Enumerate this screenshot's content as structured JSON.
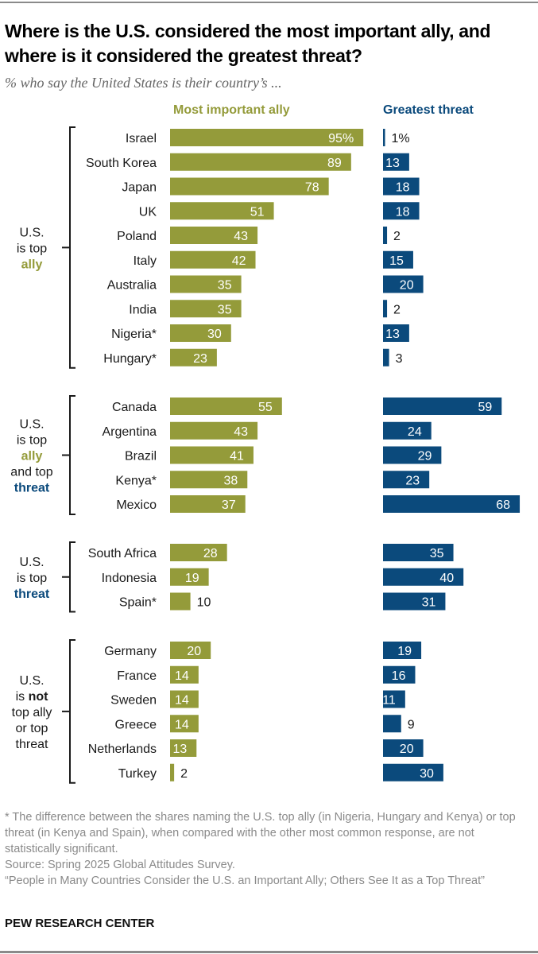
{
  "header": {
    "title": "Where is the U.S. considered the most important ally, and where is it considered the greatest threat?",
    "subtitle": "% who say the United States is their country’s ..."
  },
  "colors": {
    "ally": "#949b3a",
    "threat": "#0b4a7c"
  },
  "chart_data": {
    "type": "bar",
    "title": "Where is the U.S. considered the most important ally, and where is it considered the greatest threat?",
    "subtitle": "% who say the United States is their country’s ...",
    "series_labels": [
      "Most important ally",
      "Greatest threat"
    ],
    "unit": "%",
    "groups": [
      {
        "label_lines": [
          {
            "parts": [
              {
                "text": "U.S.",
                "style": "normal"
              }
            ]
          },
          {
            "parts": [
              {
                "text": "is top",
                "style": "normal"
              }
            ]
          },
          {
            "parts": [
              {
                "text": "ally",
                "style": "ally"
              }
            ]
          }
        ],
        "rows": [
          {
            "country": "Israel",
            "ally": 95,
            "threat": 1,
            "ally_label": "95%",
            "threat_label": "1%"
          },
          {
            "country": "South Korea",
            "ally": 89,
            "threat": 13
          },
          {
            "country": "Japan",
            "ally": 78,
            "threat": 18
          },
          {
            "country": "UK",
            "ally": 51,
            "threat": 18
          },
          {
            "country": "Poland",
            "ally": 43,
            "threat": 2
          },
          {
            "country": "Italy",
            "ally": 42,
            "threat": 15
          },
          {
            "country": "Australia",
            "ally": 35,
            "threat": 20
          },
          {
            "country": "India",
            "ally": 35,
            "threat": 2
          },
          {
            "country": "Nigeria*",
            "ally": 30,
            "threat": 13
          },
          {
            "country": "Hungary*",
            "ally": 23,
            "threat": 3
          }
        ]
      },
      {
        "label_lines": [
          {
            "parts": [
              {
                "text": "U.S.",
                "style": "normal"
              }
            ]
          },
          {
            "parts": [
              {
                "text": "is top",
                "style": "normal"
              }
            ]
          },
          {
            "parts": [
              {
                "text": "ally",
                "style": "ally"
              }
            ]
          },
          {
            "parts": [
              {
                "text": "and top",
                "style": "normal"
              }
            ]
          },
          {
            "parts": [
              {
                "text": "threat",
                "style": "threat"
              }
            ]
          }
        ],
        "rows": [
          {
            "country": "Canada",
            "ally": 55,
            "threat": 59
          },
          {
            "country": "Argentina",
            "ally": 43,
            "threat": 24
          },
          {
            "country": "Brazil",
            "ally": 41,
            "threat": 29
          },
          {
            "country": "Kenya*",
            "ally": 38,
            "threat": 23
          },
          {
            "country": "Mexico",
            "ally": 37,
            "threat": 68
          }
        ]
      },
      {
        "label_lines": [
          {
            "parts": [
              {
                "text": "U.S.",
                "style": "normal"
              }
            ]
          },
          {
            "parts": [
              {
                "text": "is top",
                "style": "normal"
              }
            ]
          },
          {
            "parts": [
              {
                "text": "threat",
                "style": "threat"
              }
            ]
          }
        ],
        "rows": [
          {
            "country": "South Africa",
            "ally": 28,
            "threat": 35
          },
          {
            "country": "Indonesia",
            "ally": 19,
            "threat": 40
          },
          {
            "country": "Spain*",
            "ally": 10,
            "threat": 31
          }
        ]
      },
      {
        "label_lines": [
          {
            "parts": [
              {
                "text": "U.S.",
                "style": "normal"
              }
            ]
          },
          {
            "parts": [
              {
                "text": "is ",
                "style": "normal"
              },
              {
                "text": "not",
                "style": "bold"
              }
            ]
          },
          {
            "parts": [
              {
                "text": "top ally",
                "style": "normal"
              }
            ]
          },
          {
            "parts": [
              {
                "text": "or top",
                "style": "normal"
              }
            ]
          },
          {
            "parts": [
              {
                "text": "threat",
                "style": "normal"
              }
            ]
          }
        ],
        "rows": [
          {
            "country": "Germany",
            "ally": 20,
            "threat": 19
          },
          {
            "country": "France",
            "ally": 14,
            "threat": 16
          },
          {
            "country": "Sweden",
            "ally": 14,
            "threat": 11
          },
          {
            "country": "Greece",
            "ally": 14,
            "threat": 9
          },
          {
            "country": "Netherlands",
            "ally": 13,
            "threat": 20
          },
          {
            "country": "Turkey",
            "ally": 2,
            "threat": 30
          }
        ]
      }
    ]
  },
  "footer": {
    "note": "* The difference between the shares naming the U.S. top ally (in Nigeria, Hungary and Kenya) or top threat (in Kenya and Spain), when compared with the other most common response, are not statistically significant.",
    "source": "Source: Spring 2025 Global Attitudes Survey.",
    "report": "“People in Many Countries Consider the U.S. an Important Ally; Others See It as a Top Threat”",
    "brand": "PEW RESEARCH CENTER"
  }
}
